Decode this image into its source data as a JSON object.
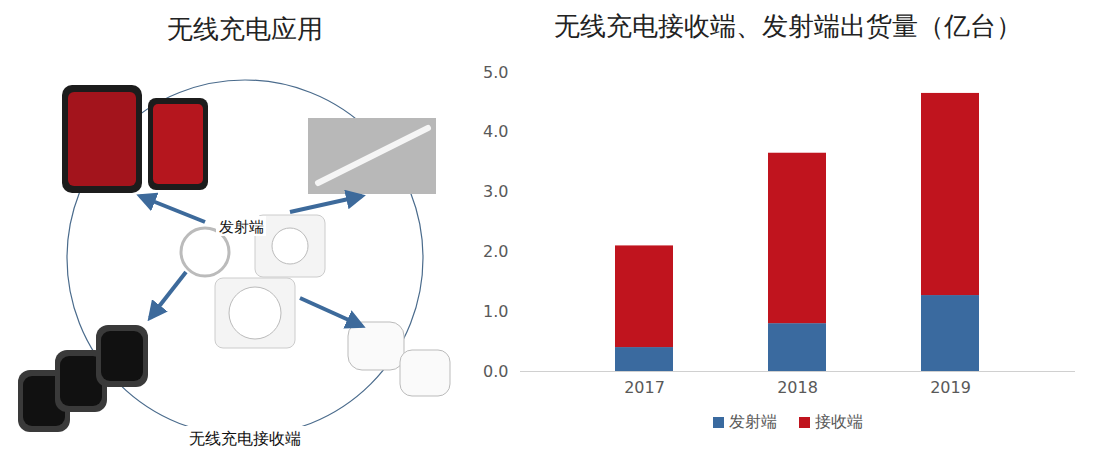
{
  "chart_data": {
    "type": "bar",
    "title": "无线充电接收端、发射端出货量（亿台）",
    "categories": [
      "2017",
      "2018",
      "2019"
    ],
    "series": [
      {
        "name": "发射端",
        "color": "#3A6A9F",
        "values": [
          0.4,
          0.8,
          1.27
        ]
      },
      {
        "name": "接收端",
        "color": "#C0141E",
        "values": [
          1.7,
          2.85,
          3.38
        ]
      }
    ],
    "ylim": [
      0,
      5
    ],
    "yticks": [
      0,
      1,
      2,
      3,
      4,
      5
    ],
    "grid": false,
    "stacked": true,
    "legend": "bottom"
  },
  "diagram": {
    "title": "无线充电应用",
    "center_label": "发射端",
    "ring_label": "无线充电接收端"
  }
}
